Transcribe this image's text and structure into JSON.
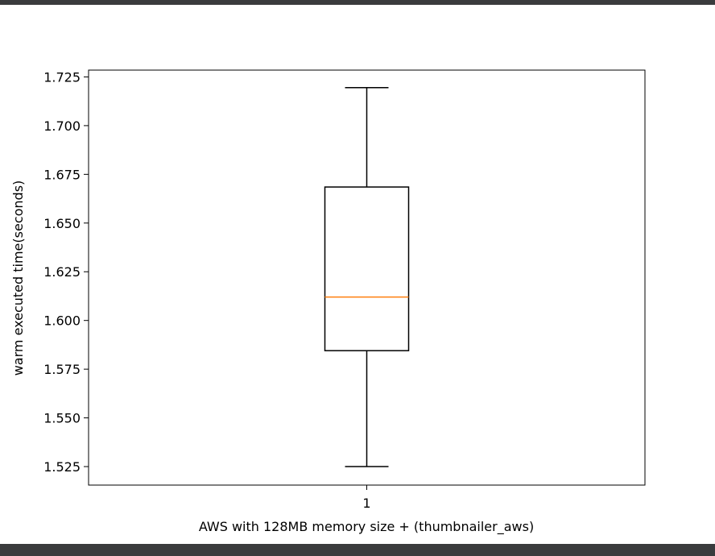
{
  "chart_data": {
    "type": "box",
    "title": "",
    "xlabel": "AWS with 128MB memory size + (thumbnailer_aws)",
    "ylabel": "warm executed time(seconds)",
    "x_ticks": [
      "1"
    ],
    "y_ticks": [
      "1.525",
      "1.550",
      "1.575",
      "1.600",
      "1.625",
      "1.650",
      "1.675",
      "1.700",
      "1.725"
    ],
    "ylim": [
      1.5155,
      1.7285
    ],
    "grid": false,
    "boxes": [
      {
        "label": "1",
        "whisker_low": 1.525,
        "q1": 1.5845,
        "median": 1.612,
        "q3": 1.6685,
        "whisker_high": 1.7195
      }
    ],
    "colors": {
      "box": "#000000",
      "median": "#ff7f0e",
      "chrome": "#3a3b3d"
    }
  }
}
